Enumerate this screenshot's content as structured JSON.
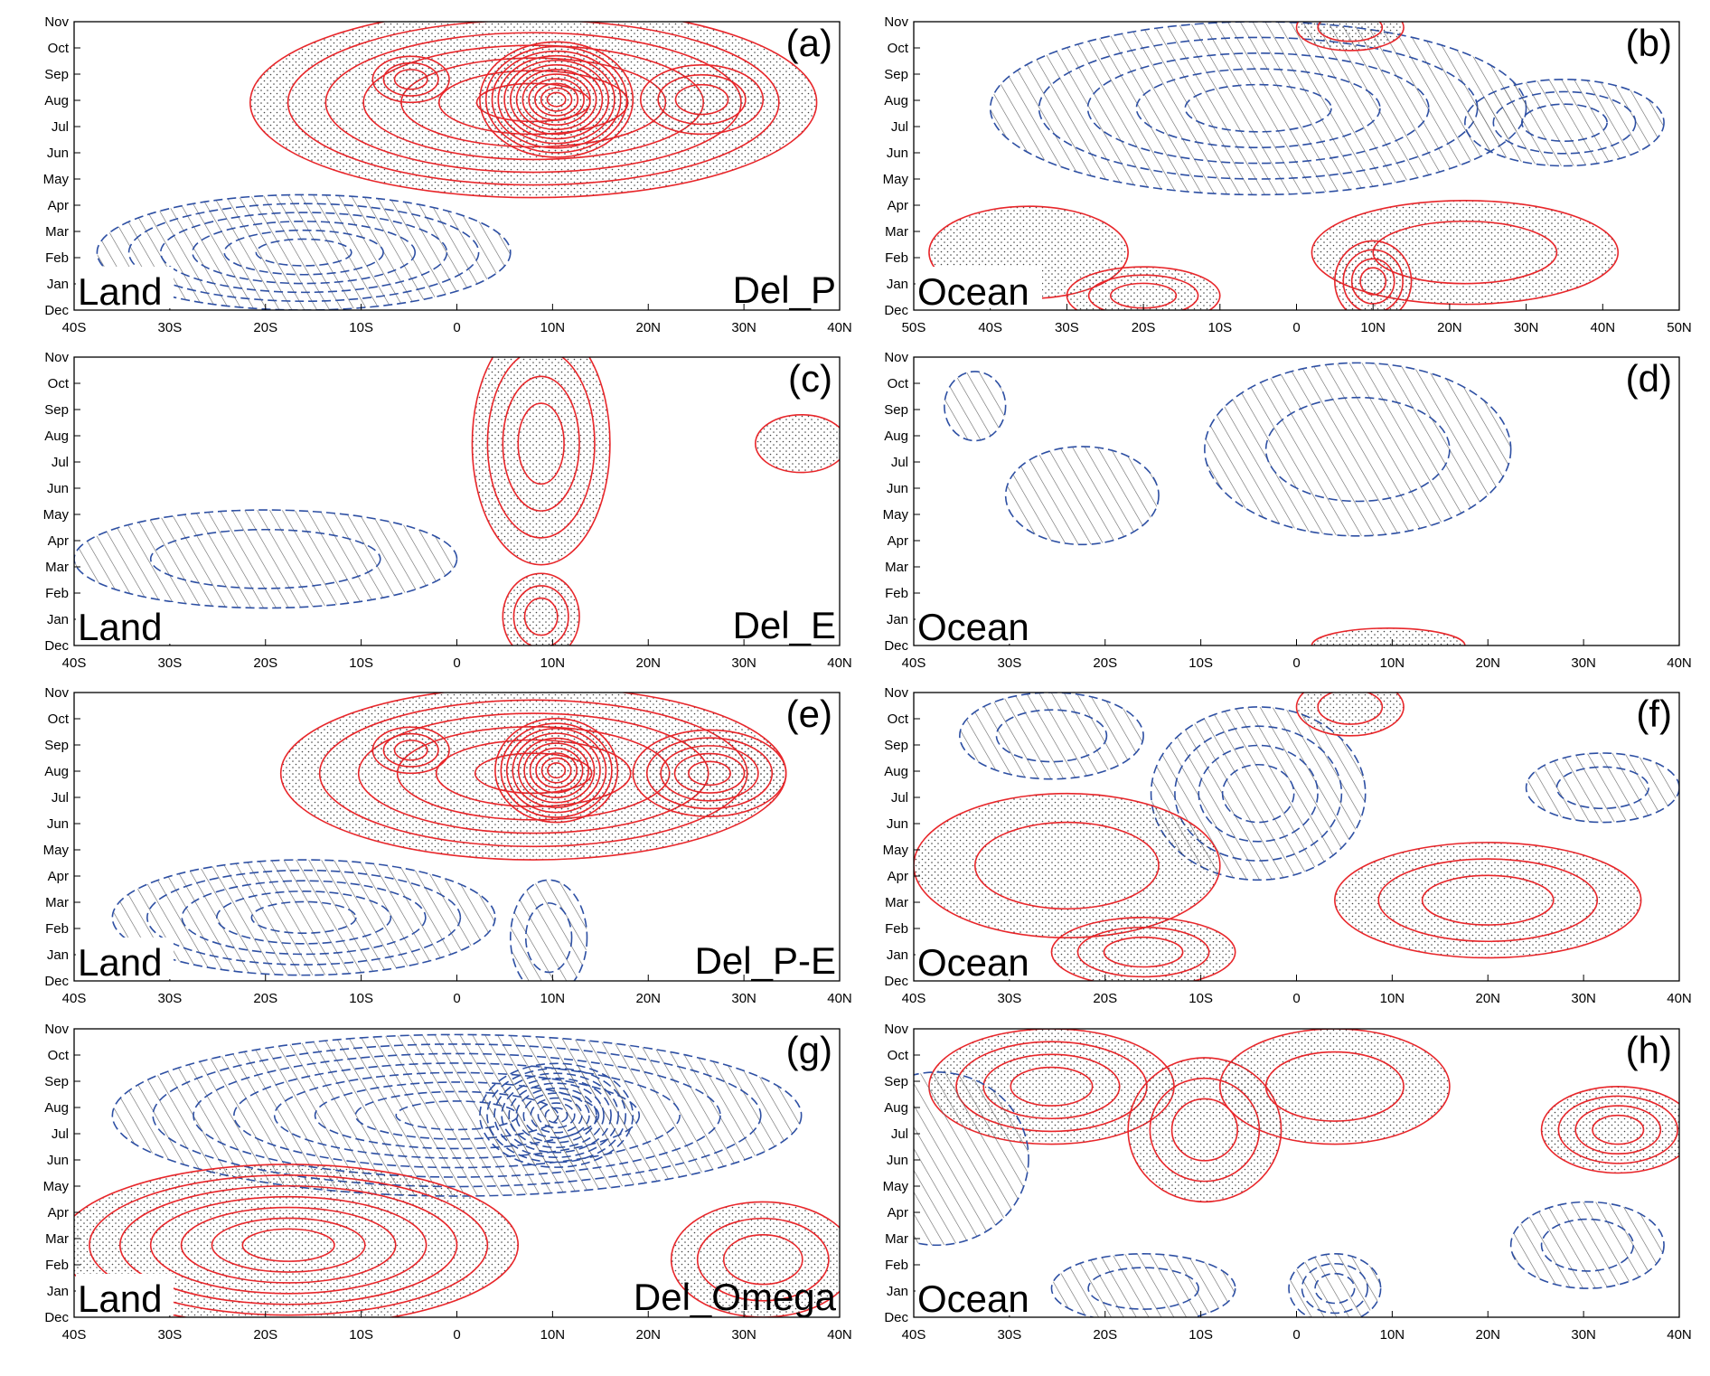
{
  "yticks": [
    "Dec",
    "Jan",
    "Feb",
    "Mar",
    "Apr",
    "May",
    "Jun",
    "Jul",
    "Aug",
    "Sep",
    "Oct",
    "Nov"
  ],
  "panels": [
    {
      "label": "(a)",
      "region": "Land",
      "variable": "Del_P",
      "xlim": [
        -40,
        40
      ],
      "xticks": [
        {
          "value": -40,
          "label": "40S"
        },
        {
          "value": -30,
          "label": "30S"
        },
        {
          "value": -20,
          "label": "20S"
        },
        {
          "value": -10,
          "label": "10S"
        },
        0,
        {
          "value": 10,
          "label": "10N"
        },
        {
          "value": 20,
          "label": "20N"
        },
        {
          "value": 30,
          "label": "30N"
        },
        {
          "value": 40,
          "label": "40N"
        }
      ]
    },
    {
      "label": "(b)",
      "region": "Ocean",
      "xlim": [
        -50,
        50
      ],
      "xticks": [
        {
          "value": -50,
          "label": "50S"
        },
        {
          "value": -40,
          "label": "40S"
        },
        {
          "value": -30,
          "label": "30S"
        },
        {
          "value": -20,
          "label": "20S"
        },
        {
          "value": -10,
          "label": "10S"
        },
        0,
        {
          "value": 10,
          "label": "10N"
        },
        {
          "value": 20,
          "label": "20N"
        },
        {
          "value": 30,
          "label": "30N"
        },
        {
          "value": 40,
          "label": "40N"
        },
        {
          "value": 50,
          "label": "50N"
        }
      ]
    },
    {
      "label": "(c)",
      "region": "Land",
      "variable": "Del_E",
      "xlim": [
        -40,
        40
      ],
      "xticks": [
        {
          "value": -40,
          "label": "40S"
        },
        {
          "value": -30,
          "label": "30S"
        },
        {
          "value": -20,
          "label": "20S"
        },
        {
          "value": -10,
          "label": "10S"
        },
        0,
        {
          "value": 10,
          "label": "10N"
        },
        {
          "value": 20,
          "label": "20N"
        },
        {
          "value": 30,
          "label": "30N"
        },
        {
          "value": 40,
          "label": "40N"
        }
      ]
    },
    {
      "label": "(d)",
      "region": "Ocean",
      "xlim": [
        -40,
        40
      ],
      "xticks": [
        {
          "value": -40,
          "label": "40S"
        },
        {
          "value": -30,
          "label": "30S"
        },
        {
          "value": -20,
          "label": "20S"
        },
        {
          "value": -10,
          "label": "10S"
        },
        0,
        {
          "value": 10,
          "label": "10N"
        },
        {
          "value": 20,
          "label": "20N"
        },
        {
          "value": 30,
          "label": "30N"
        },
        {
          "value": 40,
          "label": "40N"
        }
      ]
    },
    {
      "label": "(e)",
      "region": "Land",
      "variable": "Del_P-E",
      "xlim": [
        -40,
        40
      ],
      "xticks": [
        {
          "value": -40,
          "label": "40S"
        },
        {
          "value": -30,
          "label": "30S"
        },
        {
          "value": -20,
          "label": "20S"
        },
        {
          "value": -10,
          "label": "10S"
        },
        0,
        {
          "value": 10,
          "label": "10N"
        },
        {
          "value": 20,
          "label": "20N"
        },
        {
          "value": 30,
          "label": "30N"
        },
        {
          "value": 40,
          "label": "40N"
        }
      ]
    },
    {
      "label": "(f)",
      "region": "Ocean",
      "xlim": [
        -40,
        40
      ],
      "xticks": [
        {
          "value": -40,
          "label": "40S"
        },
        {
          "value": -30,
          "label": "30S"
        },
        {
          "value": -20,
          "label": "20S"
        },
        {
          "value": -10,
          "label": "10S"
        },
        0,
        {
          "value": 10,
          "label": "10N"
        },
        {
          "value": 20,
          "label": "20N"
        },
        {
          "value": 30,
          "label": "30N"
        },
        {
          "value": 40,
          "label": "40N"
        }
      ]
    },
    {
      "label": "(g)",
      "region": "Land",
      "variable": "Del_Omega",
      "xlim": [
        -40,
        40
      ],
      "xticks": [
        {
          "value": -40,
          "label": "40S"
        },
        {
          "value": -30,
          "label": "30S"
        },
        {
          "value": -20,
          "label": "20S"
        },
        {
          "value": -10,
          "label": "10S"
        },
        0,
        {
          "value": 10,
          "label": "10N"
        },
        {
          "value": 20,
          "label": "20N"
        },
        {
          "value": 30,
          "label": "30N"
        },
        {
          "value": 40,
          "label": "40N"
        }
      ]
    },
    {
      "label": "(h)",
      "region": "Ocean",
      "xlim": [
        -40,
        40
      ],
      "xticks": [
        {
          "value": -40,
          "label": "40S"
        },
        {
          "value": -30,
          "label": "30S"
        },
        {
          "value": -20,
          "label": "20S"
        },
        {
          "value": -10,
          "label": "10S"
        },
        0,
        {
          "value": 10,
          "label": "10N"
        },
        {
          "value": 20,
          "label": "20N"
        },
        {
          "value": 30,
          "label": "30N"
        },
        {
          "value": 40,
          "label": "40N"
        }
      ]
    }
  ]
}
